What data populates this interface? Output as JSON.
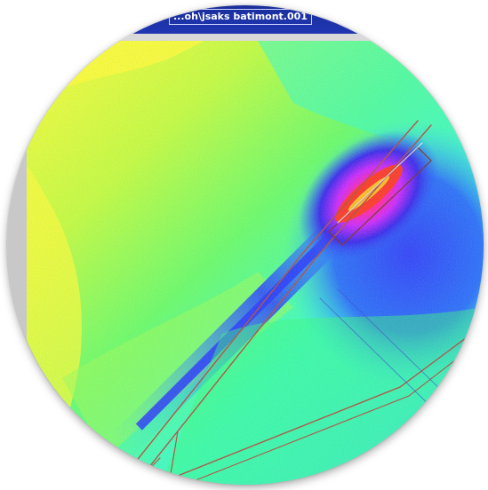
{
  "window": {
    "title": "...oh\\jsaks batimont.001"
  },
  "map": {
    "colormap": [
      "#ffff33",
      "#b8ff33",
      "#33ff66",
      "#33ffcc",
      "#33ccff",
      "#2266ff",
      "#3322ee",
      "#cc22ff",
      "#ff22aa",
      "#ff3322"
    ]
  }
}
